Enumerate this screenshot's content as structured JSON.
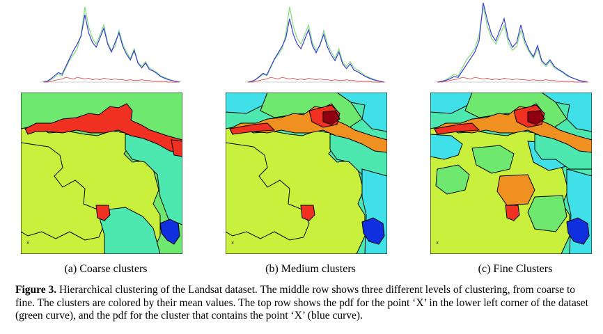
{
  "panels": [
    {
      "label": "(a) Coarse clusters",
      "x_marker": "x"
    },
    {
      "label": "(b) Medium clusters",
      "x_marker": "x"
    },
    {
      "label": "(c) Fine Clusters",
      "x_marker": "x"
    }
  ],
  "caption": {
    "label": "Figure 3.",
    "text": " Hierarchical clustering of the Landsat dataset. The middle row shows three different levels of clustering, from coarse to fine. The clusters are colored by their mean values. The top row shows the pdf for the point ‘X’ in the lower left corner of the dataset (green curve), and the pdf for the cluster that contains the point ‘X’ (blue curve)."
  },
  "colors": {
    "green_curve": "#7fdc7f",
    "blue_curve": "#3a3ad0",
    "red_curve": "#e05050",
    "cluster_cyan": "#40e0e8",
    "cluster_teal": "#4de8b0",
    "cluster_green": "#6ee86e",
    "cluster_yellowgreen": "#c8f03c",
    "cluster_yellow": "#f0f020",
    "cluster_orange": "#f09020",
    "cluster_red": "#f03020",
    "cluster_darkred": "#900010",
    "cluster_blue": "#1030e0"
  },
  "chart_data": [
    {
      "type": "line",
      "series": [
        {
          "values": [
            0,
            1,
            3,
            6,
            10,
            8,
            18,
            28,
            35,
            42,
            60,
            95,
            70,
            55,
            48,
            60,
            72,
            50,
            40,
            45,
            65,
            48,
            38,
            30,
            42,
            25,
            20,
            26,
            18,
            15,
            12,
            8,
            6,
            4,
            2,
            1,
            0
          ]
        },
        {
          "values": [
            0,
            1,
            4,
            8,
            12,
            10,
            20,
            30,
            40,
            48,
            58,
            85,
            62,
            50,
            44,
            56,
            68,
            48,
            38,
            50,
            62,
            45,
            35,
            28,
            40,
            24,
            18,
            24,
            16,
            14,
            11,
            7,
            5,
            3,
            2,
            1,
            0
          ]
        },
        {
          "values": [
            0,
            0,
            1,
            2,
            3,
            4,
            6,
            5,
            4,
            6,
            5,
            4,
            5,
            3,
            4,
            3,
            5,
            4,
            3,
            4,
            3,
            3,
            2,
            3,
            2,
            2,
            3,
            2,
            2,
            1,
            1,
            1,
            1,
            0,
            0,
            0,
            0
          ]
        }
      ]
    },
    {
      "type": "line",
      "series": [
        {
          "values": [
            0,
            1,
            3,
            6,
            10,
            8,
            18,
            28,
            35,
            42,
            60,
            95,
            70,
            55,
            48,
            60,
            72,
            50,
            40,
            45,
            65,
            48,
            38,
            30,
            42,
            25,
            20,
            26,
            18,
            15,
            12,
            8,
            6,
            4,
            2,
            1,
            0
          ]
        },
        {
          "values": [
            0,
            1,
            3,
            7,
            11,
            9,
            19,
            29,
            37,
            45,
            55,
            80,
            60,
            48,
            42,
            54,
            66,
            46,
            37,
            47,
            60,
            44,
            34,
            27,
            38,
            23,
            17,
            23,
            15,
            13,
            10,
            7,
            5,
            3,
            2,
            1,
            0
          ]
        },
        {
          "values": [
            0,
            0,
            1,
            2,
            3,
            4,
            6,
            5,
            4,
            6,
            5,
            4,
            5,
            3,
            4,
            3,
            5,
            4,
            3,
            4,
            3,
            3,
            2,
            3,
            2,
            2,
            3,
            2,
            2,
            1,
            1,
            1,
            1,
            0,
            0,
            0,
            0
          ]
        }
      ]
    },
    {
      "type": "line",
      "series": [
        {
          "values": [
            0,
            1,
            3,
            6,
            10,
            8,
            18,
            28,
            35,
            42,
            60,
            95,
            70,
            55,
            48,
            60,
            72,
            50,
            40,
            45,
            65,
            48,
            38,
            30,
            42,
            25,
            20,
            26,
            18,
            15,
            12,
            8,
            6,
            4,
            2,
            1,
            0
          ]
        },
        {
          "values": [
            0,
            1,
            2,
            4,
            7,
            6,
            14,
            22,
            30,
            38,
            52,
            100,
            78,
            60,
            52,
            66,
            80,
            55,
            44,
            50,
            72,
            52,
            40,
            32,
            46,
            27,
            22,
            28,
            20,
            16,
            13,
            9,
            6,
            4,
            2,
            1,
            0
          ]
        },
        {
          "values": [
            0,
            0,
            1,
            2,
            3,
            4,
            6,
            5,
            4,
            6,
            5,
            4,
            5,
            3,
            4,
            3,
            5,
            4,
            3,
            4,
            3,
            3,
            2,
            3,
            2,
            2,
            3,
            2,
            2,
            1,
            1,
            1,
            1,
            0,
            0,
            0,
            0
          ]
        }
      ]
    }
  ]
}
